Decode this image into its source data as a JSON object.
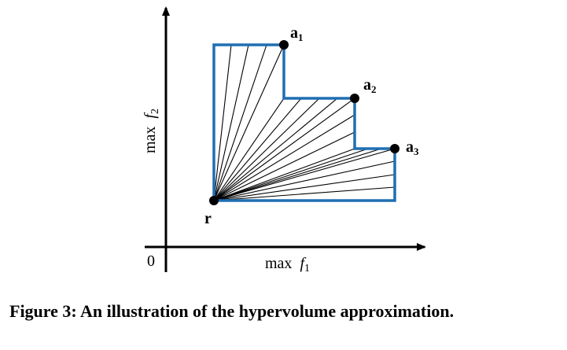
{
  "axes": {
    "x_label": "max",
    "x_var": "f",
    "x_sub": "1",
    "y_label": "max",
    "y_var": "f",
    "y_sub": "2",
    "origin_label": "0"
  },
  "points": {
    "reference": {
      "label": "r"
    },
    "solutions": [
      {
        "label": "a",
        "sub": "1"
      },
      {
        "label": "a",
        "sub": "2"
      },
      {
        "label": "a",
        "sub": "3"
      }
    ]
  },
  "colors": {
    "region_outline": "#1f6fb2",
    "rays": "#000000",
    "points": "#000000"
  },
  "caption": {
    "text": "Figure 3: An illustration of the hypervolume approximation."
  }
}
